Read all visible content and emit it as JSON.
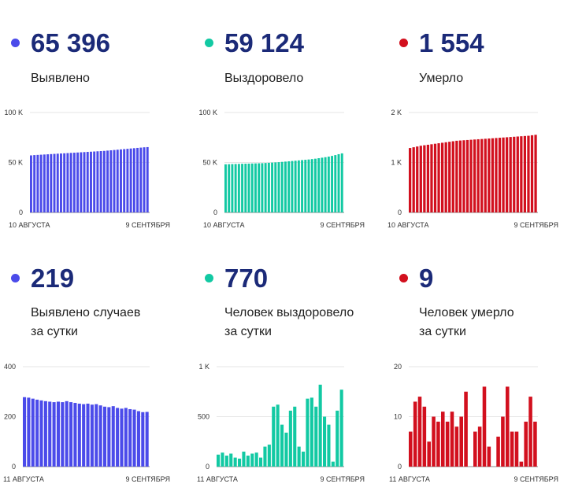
{
  "colors": {
    "blue": "#4b4bea",
    "teal": "#12c9a3",
    "red": "#d2101e",
    "number": "#1b2a78"
  },
  "panels": [
    {
      "number": "65 396",
      "label_lines": [
        "Выявлено"
      ],
      "color": "#4b4bea"
    },
    {
      "number": "59 124",
      "label_lines": [
        "Выздоровело"
      ],
      "color": "#12c9a3"
    },
    {
      "number": "1 554",
      "label_lines": [
        "Умерло"
      ],
      "color": "#d2101e"
    },
    {
      "number": "219",
      "label_lines": [
        "Выявлено случаев",
        "за сутки"
      ],
      "color": "#4b4bea"
    },
    {
      "number": "770",
      "label_lines": [
        "Человек выздоровело",
        "за сутки"
      ],
      "color": "#12c9a3"
    },
    {
      "number": "9",
      "label_lines": [
        "Человек умерло",
        "за сутки"
      ],
      "color": "#d2101e"
    }
  ],
  "chart_data": [
    {
      "type": "bar",
      "color": "#4b4bea",
      "ylim": [
        0,
        100000
      ],
      "y_ticks": [
        {
          "value": 0,
          "label": "0"
        },
        {
          "value": 50000,
          "label": "50 K"
        },
        {
          "value": 100000,
          "label": "100 K"
        }
      ],
      "x_labels": [
        "10 АВГУСТА",
        "9 СЕНТЯБРЯ"
      ],
      "values": [
        57100,
        57400,
        57600,
        57800,
        58000,
        58200,
        58400,
        58600,
        58800,
        59000,
        59200,
        59400,
        59600,
        59800,
        60000,
        60200,
        60400,
        60600,
        60800,
        61000,
        61200,
        61400,
        61600,
        61900,
        62200,
        62500,
        62800,
        63100,
        63400,
        63700,
        64000,
        64300,
        64600,
        64900,
        65200,
        65396
      ]
    },
    {
      "type": "bar",
      "color": "#12c9a3",
      "ylim": [
        0,
        100000
      ],
      "y_ticks": [
        {
          "value": 0,
          "label": "0"
        },
        {
          "value": 50000,
          "label": "50 K"
        },
        {
          "value": 100000,
          "label": "100 K"
        }
      ],
      "x_labels": [
        "10 АВГУСТА",
        "9 СЕНТЯБРЯ"
      ],
      "values": [
        48200,
        48300,
        48400,
        48500,
        48600,
        48700,
        48800,
        48900,
        49000,
        49100,
        49200,
        49300,
        49500,
        49700,
        49900,
        50100,
        50300,
        50600,
        50900,
        51200,
        51500,
        51800,
        52100,
        52400,
        52700,
        53000,
        53400,
        53800,
        54300,
        54800,
        55300,
        55900,
        56600,
        57400,
        58300,
        59124
      ]
    },
    {
      "type": "bar",
      "color": "#d2101e",
      "ylim": [
        0,
        2000
      ],
      "y_ticks": [
        {
          "value": 0,
          "label": "0"
        },
        {
          "value": 1000,
          "label": "1 K"
        },
        {
          "value": 2000,
          "label": "2 K"
        }
      ],
      "x_labels": [
        "10 АВГУСТА",
        "9 СЕНТЯБРЯ"
      ],
      "values": [
        1290,
        1305,
        1320,
        1335,
        1345,
        1355,
        1365,
        1375,
        1385,
        1395,
        1405,
        1415,
        1425,
        1435,
        1440,
        1445,
        1450,
        1455,
        1460,
        1465,
        1470,
        1475,
        1480,
        1485,
        1490,
        1495,
        1500,
        1505,
        1510,
        1515,
        1520,
        1525,
        1530,
        1535,
        1545,
        1554
      ]
    },
    {
      "type": "bar",
      "color": "#4b4bea",
      "ylim": [
        0,
        400
      ],
      "y_ticks": [
        {
          "value": 0,
          "label": "0"
        },
        {
          "value": 200,
          "label": "200"
        },
        {
          "value": 400,
          "label": "400"
        }
      ],
      "x_labels": [
        "11 АВГУСТА",
        "9 СЕНТЯБРЯ"
      ],
      "values": [
        278,
        276,
        272,
        268,
        265,
        262,
        260,
        258,
        260,
        258,
        262,
        258,
        255,
        252,
        250,
        252,
        248,
        250,
        245,
        240,
        238,
        242,
        235,
        232,
        235,
        230,
        228,
        222,
        218,
        219
      ]
    },
    {
      "type": "bar",
      "color": "#12c9a3",
      "ylim": [
        0,
        1000
      ],
      "y_ticks": [
        {
          "value": 0,
          "label": "0"
        },
        {
          "value": 500,
          "label": "500"
        },
        {
          "value": 1000,
          "label": "1 K"
        }
      ],
      "x_labels": [
        "11 АВГУСТА",
        "9 СЕНТЯБРЯ"
      ],
      "values": [
        120,
        140,
        110,
        130,
        90,
        80,
        150,
        110,
        130,
        140,
        90,
        200,
        220,
        600,
        620,
        420,
        340,
        560,
        600,
        200,
        150,
        680,
        690,
        600,
        820,
        500,
        420,
        50,
        560,
        770
      ]
    },
    {
      "type": "bar",
      "color": "#d2101e",
      "ylim": [
        0,
        20
      ],
      "y_ticks": [
        {
          "value": 0,
          "label": "0"
        },
        {
          "value": 10,
          "label": "10"
        },
        {
          "value": 20,
          "label": "20"
        }
      ],
      "x_labels": [
        "11 АВГУСТА",
        "9 СЕНТЯБРЯ"
      ],
      "values": [
        7,
        13,
        14,
        12,
        5,
        10,
        9,
        11,
        9,
        11,
        8,
        10,
        15,
        0,
        7,
        8,
        16,
        4,
        0,
        6,
        10,
        16,
        7,
        7,
        1,
        9,
        14,
        9
      ]
    }
  ]
}
